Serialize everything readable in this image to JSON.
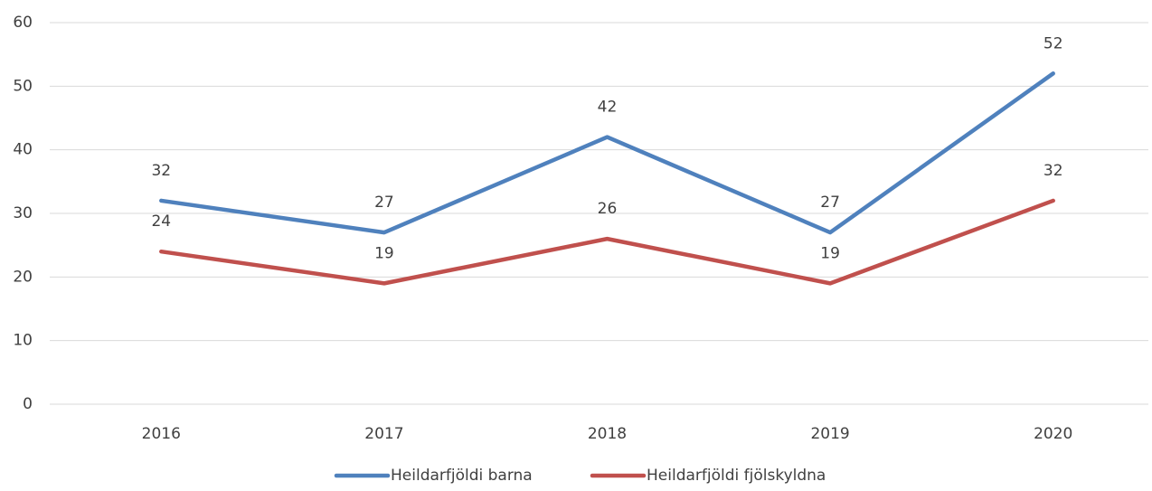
{
  "chart_data": {
    "type": "line",
    "categories": [
      "2016",
      "2017",
      "2018",
      "2019",
      "2020"
    ],
    "series": [
      {
        "name": "Heildarfjöldi barna",
        "color": "#4f81bd",
        "values": [
          32,
          27,
          42,
          27,
          52
        ]
      },
      {
        "name": "Heildarfjöldi fjölskyldna",
        "color": "#c0504d",
        "values": [
          24,
          19,
          26,
          19,
          32
        ]
      }
    ],
    "ylim": [
      0,
      60
    ],
    "yticks": [
      0,
      10,
      20,
      30,
      40,
      50,
      60
    ],
    "grid": true,
    "legend": "bottom"
  }
}
